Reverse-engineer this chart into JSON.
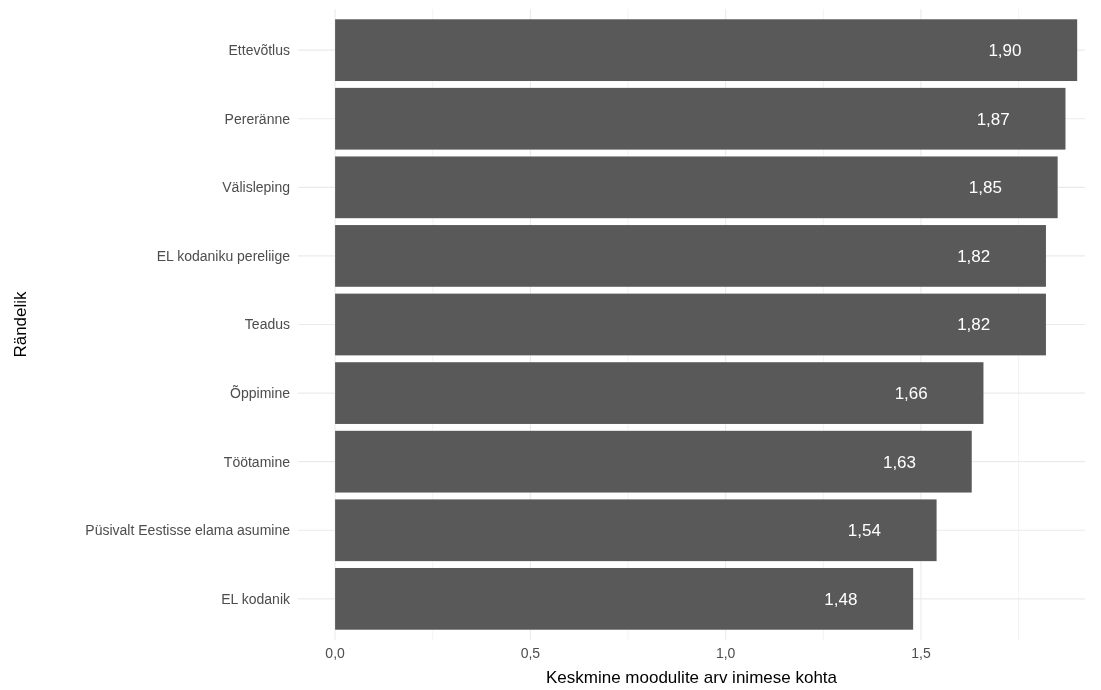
{
  "chart_data": {
    "type": "bar",
    "orientation": "horizontal",
    "xlabel": "Keskmine moodulite arv inimese kohta",
    "ylabel": "Rändelik",
    "categories": [
      "Ettevõtlus",
      "Pereränne",
      "Välisleping",
      "EL kodaniku pereliige",
      "Teadus",
      "Õppimine",
      "Töötamine",
      "Püsivalt Eestisse elama asumine",
      "EL kodanik"
    ],
    "values": [
      1.9,
      1.87,
      1.85,
      1.82,
      1.82,
      1.66,
      1.63,
      1.54,
      1.48
    ],
    "value_labels": [
      "1,90",
      "1,87",
      "1,85",
      "1,82",
      "1,82",
      "1,66",
      "1,63",
      "1,54",
      "1,48"
    ],
    "color": "#595959",
    "xlim": [
      -0.095,
      1.92
    ],
    "xticks": [
      {
        "value": 0,
        "label": "0,0"
      },
      {
        "value": 0.25,
        "label": null
      },
      {
        "value": 0.5,
        "label": "0,5"
      },
      {
        "value": 0.75,
        "label": null
      },
      {
        "value": 1,
        "label": "1,0"
      },
      {
        "value": 1.25,
        "label": null
      },
      {
        "value": 1.5,
        "label": "1,5"
      },
      {
        "value": 1.75,
        "label": null
      }
    ],
    "grid": true
  }
}
